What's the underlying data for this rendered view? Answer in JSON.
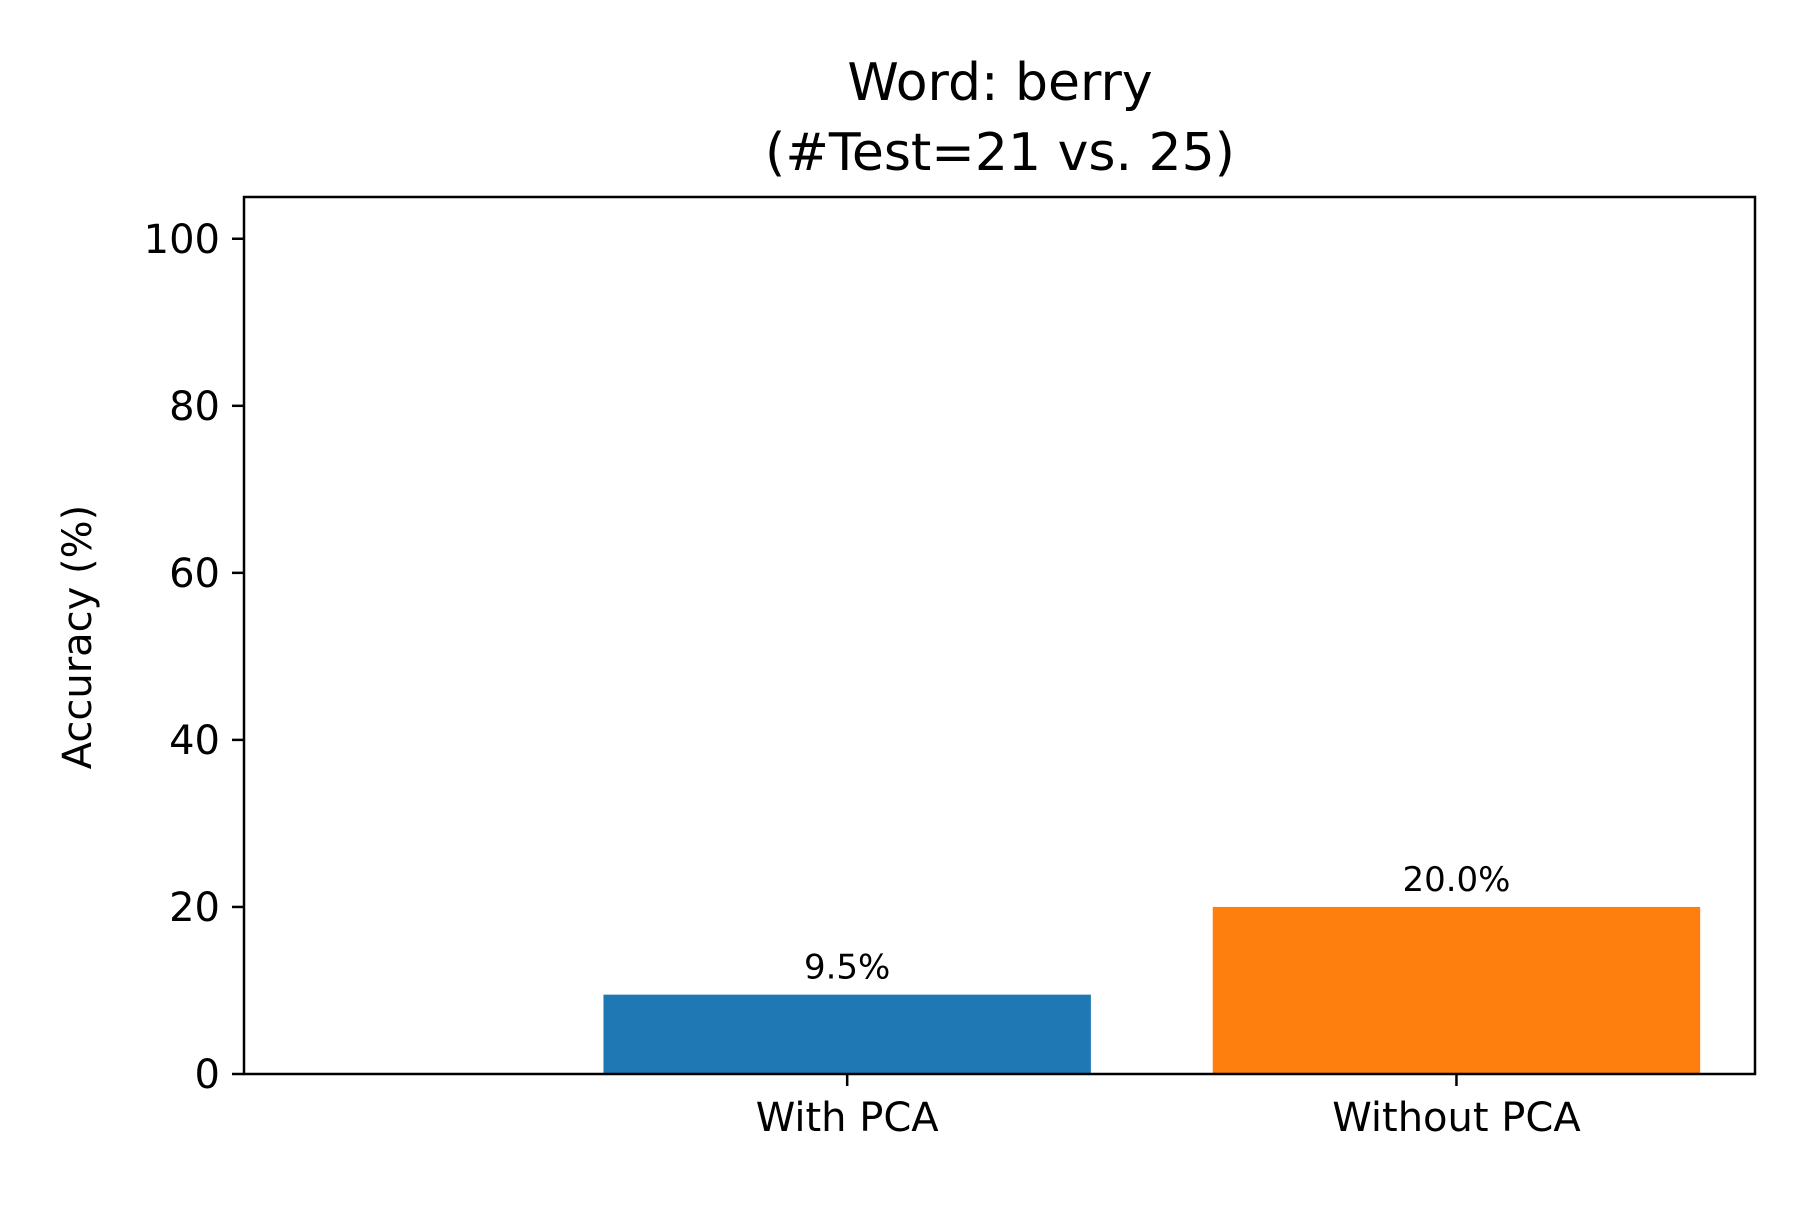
{
  "chart_data": {
    "type": "bar",
    "title": "Word: berry",
    "subtitle": "(#Test=21 vs. 25)",
    "xlabel": "",
    "ylabel": "Accuracy (%)",
    "categories": [
      "With PCA",
      "Without PCA"
    ],
    "values": [
      9.5,
      20.0
    ],
    "value_labels": [
      "9.5%",
      "20.0%"
    ],
    "colors": [
      "#1f77b4",
      "#ff7f0e"
    ],
    "ylim": [
      0,
      105
    ],
    "yticks": [
      0,
      20,
      40,
      60,
      80,
      100
    ],
    "grid": false,
    "legend": "none"
  }
}
